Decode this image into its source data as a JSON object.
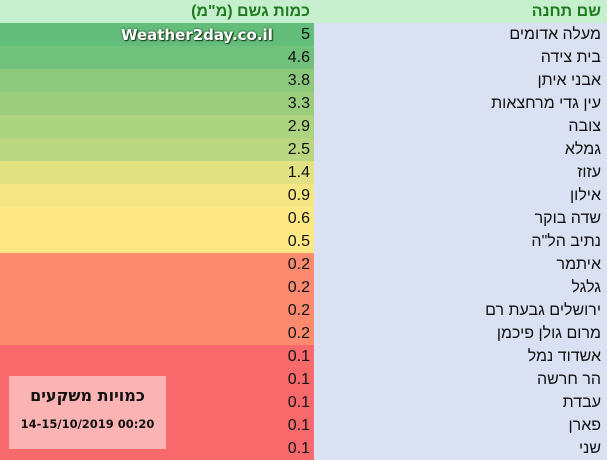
{
  "header": {
    "value_col": "כמות גשם (מ\"מ)",
    "name_col": "שם תחנה"
  },
  "watermark": "Weather2day.co.il",
  "info": {
    "title": "כמויות משקעים",
    "date": "14-15/10/2019 00:20"
  },
  "rows": [
    {
      "name": "מעלה אדומים",
      "value": "5",
      "color": "#63be7b"
    },
    {
      "name": "בית צידה",
      "value": "4.6",
      "color": "#6fc17c"
    },
    {
      "name": "אבני איתן",
      "value": "3.8",
      "color": "#8dc97d"
    },
    {
      "name": "עין גדי מרחצאות",
      "value": "3.3",
      "color": "#9ccd7e"
    },
    {
      "name": "צובה",
      "value": "2.9",
      "color": "#acd37f"
    },
    {
      "name": "גמלא",
      "value": "2.5",
      "color": "#bad680"
    },
    {
      "name": "עזוז",
      "value": "1.4",
      "color": "#e3e282"
    },
    {
      "name": "אילון",
      "value": "0.9",
      "color": "#f5e683"
    },
    {
      "name": "שדה בוקר",
      "value": "0.6",
      "color": "#fee883"
    },
    {
      "name": "נתיב הל\"ה",
      "value": "0.5",
      "color": "#fee883"
    },
    {
      "name": "איתמר",
      "value": "0.2",
      "color": "#fb8a6f"
    },
    {
      "name": "גלגל",
      "value": "0.2",
      "color": "#fb8a6f"
    },
    {
      "name": "ירושלים גבעת רם",
      "value": "0.2",
      "color": "#fb8a6f"
    },
    {
      "name": "מרום גולן פיכמן",
      "value": "0.2",
      "color": "#fb8a6f"
    },
    {
      "name": "אשדוד נמל",
      "value": "0.1",
      "color": "#f8696b"
    },
    {
      "name": "הר חרשה",
      "value": "0.1",
      "color": "#f8696b"
    },
    {
      "name": "עבדת",
      "value": "0.1",
      "color": "#f8696b"
    },
    {
      "name": "פארן",
      "value": "0.1",
      "color": "#f8696b"
    },
    {
      "name": "שני",
      "value": "0.1",
      "color": "#f8696b"
    }
  ],
  "chart_data": {
    "type": "table",
    "title": "כמויות משקעים 14-15/10/2019 00:20",
    "columns": [
      "שם תחנה",
      "כמות גשם (מ\"מ)"
    ],
    "categories": [
      "מעלה אדומים",
      "בית צידה",
      "אבני איתן",
      "עין גדי מרחצאות",
      "צובה",
      "גמלא",
      "עזוז",
      "אילון",
      "שדה בוקר",
      "נתיב הל\"ה",
      "איתמר",
      "גלגל",
      "ירושלים גבעת רם",
      "מרום גולן פיכמן",
      "אשדוד נמל",
      "הר חרשה",
      "עבדת",
      "פארן",
      "שני"
    ],
    "values": [
      5,
      4.6,
      3.8,
      3.3,
      2.9,
      2.5,
      1.4,
      0.9,
      0.6,
      0.5,
      0.2,
      0.2,
      0.2,
      0.2,
      0.1,
      0.1,
      0.1,
      0.1,
      0.1
    ],
    "ylabel": "כמות גשם (מ\"מ)",
    "color_scale": "green-yellow-red (high to low)"
  }
}
